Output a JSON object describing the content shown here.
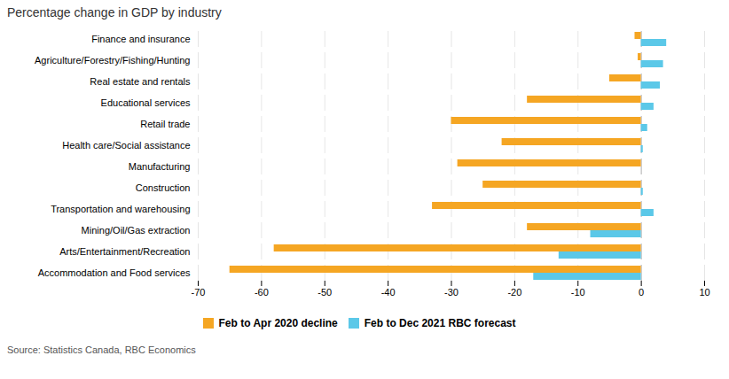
{
  "chart_data": {
    "type": "bar",
    "orientation": "horizontal",
    "title": "Percentage change in GDP by industry",
    "source": "Source: Statistics Canada, RBC Economics",
    "categories": [
      "Finance and insurance",
      "Agriculture/Forestry/Fishing/Hunting",
      "Real estate and rentals",
      "Educational services",
      "Retail trade",
      "Health care/Social assistance",
      "Manufacturing",
      "Construction",
      "Transportation and warehousing",
      "Mining/Oil/Gas extraction",
      "Arts/Entertainment/Recreation",
      "Accommodation and Food services"
    ],
    "series": [
      {
        "name": "Feb to Apr 2020 decline",
        "color": "#F5A623",
        "values": [
          -1,
          -0.5,
          -5,
          -18,
          -30,
          -22,
          -29,
          -25,
          -33,
          -18,
          -58,
          -65
        ]
      },
      {
        "name": "Feb to Dec 2021 RBC forecast",
        "color": "#5BC8E8",
        "values": [
          4,
          3.5,
          3,
          2,
          1,
          0.3,
          0,
          0.3,
          2,
          -8,
          -13,
          -17
        ]
      }
    ],
    "xlim": [
      -70,
      10
    ],
    "xticks": [
      -70,
      -60,
      -50,
      -40,
      -30,
      -20,
      -10,
      0,
      10
    ],
    "grid": true,
    "legend": "bottom"
  }
}
